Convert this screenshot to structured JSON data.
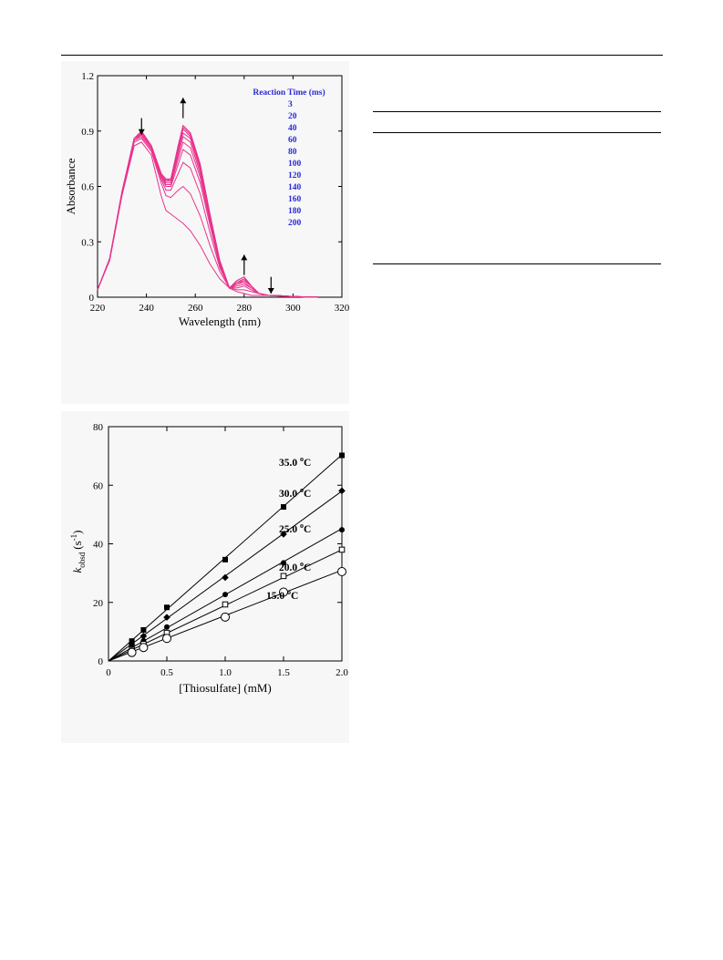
{
  "colors": {
    "spectra": "#e8338c",
    "legend_text": "#2a2ad8",
    "axis": "#000000",
    "panel_bg": "#f7f7f7"
  },
  "chart_data": [
    {
      "type": "line",
      "xlabel": "Wavelength (nm)",
      "ylabel": "Absorbance",
      "xlim": [
        220,
        320
      ],
      "ylim": [
        0,
        1.2
      ],
      "xticks": [
        "220",
        "240",
        "260",
        "280",
        "300",
        "320"
      ],
      "yticks": [
        "0",
        "0.3",
        "0.6",
        "0.9",
        "1.2"
      ],
      "legend_title": "Reaction Time (ms)",
      "legend_placement": "top-right",
      "legend_entries": [
        "3",
        "20",
        "40",
        "60",
        "80",
        "100",
        "120",
        "140",
        "160",
        "180",
        "200"
      ],
      "arrows": [
        {
          "x": 238,
          "direction": "down"
        },
        {
          "x": 255,
          "direction": "up"
        },
        {
          "x": 280,
          "direction": "up"
        },
        {
          "x": 291,
          "direction": "down"
        }
      ],
      "x": [
        220,
        225,
        230,
        235,
        238,
        242,
        246,
        248,
        250,
        253,
        255,
        258,
        262,
        266,
        270,
        274,
        277,
        280,
        283,
        286,
        290,
        295,
        300,
        305,
        310
      ],
      "series": [
        {
          "values": [
            0.04,
            0.2,
            0.55,
            0.82,
            0.84,
            0.77,
            0.55,
            0.47,
            0.45,
            0.42,
            0.4,
            0.36,
            0.28,
            0.18,
            0.1,
            0.05,
            0.03,
            0.02,
            0.01,
            0.01,
            0.01,
            0.005,
            0.003,
            0.002,
            0.001
          ]
        },
        {
          "values": [
            0.04,
            0.21,
            0.56,
            0.84,
            0.86,
            0.79,
            0.62,
            0.55,
            0.54,
            0.58,
            0.6,
            0.56,
            0.44,
            0.28,
            0.14,
            0.05,
            0.04,
            0.04,
            0.03,
            0.02,
            0.01,
            0.007,
            0.004,
            0.002,
            0.001
          ]
        },
        {
          "values": [
            0.04,
            0.21,
            0.57,
            0.85,
            0.87,
            0.8,
            0.64,
            0.58,
            0.58,
            0.67,
            0.73,
            0.7,
            0.56,
            0.35,
            0.16,
            0.05,
            0.05,
            0.06,
            0.04,
            0.02,
            0.01,
            0.008,
            0.004,
            0.002,
            0.001
          ]
        },
        {
          "values": [
            0.04,
            0.21,
            0.57,
            0.85,
            0.88,
            0.81,
            0.65,
            0.6,
            0.6,
            0.72,
            0.8,
            0.77,
            0.62,
            0.39,
            0.17,
            0.05,
            0.06,
            0.07,
            0.05,
            0.02,
            0.01,
            0.008,
            0.004,
            0.002,
            0.001
          ]
        },
        {
          "values": [
            0.04,
            0.21,
            0.57,
            0.86,
            0.88,
            0.81,
            0.66,
            0.61,
            0.61,
            0.75,
            0.84,
            0.81,
            0.65,
            0.41,
            0.18,
            0.05,
            0.07,
            0.08,
            0.05,
            0.02,
            0.01,
            0.008,
            0.004,
            0.002,
            0.001
          ]
        },
        {
          "values": [
            0.04,
            0.21,
            0.57,
            0.86,
            0.89,
            0.82,
            0.66,
            0.62,
            0.62,
            0.77,
            0.87,
            0.84,
            0.67,
            0.42,
            0.18,
            0.05,
            0.07,
            0.09,
            0.06,
            0.02,
            0.01,
            0.008,
            0.004,
            0.002,
            0.001
          ]
        },
        {
          "values": [
            0.04,
            0.21,
            0.57,
            0.86,
            0.89,
            0.82,
            0.67,
            0.63,
            0.63,
            0.79,
            0.89,
            0.86,
            0.69,
            0.43,
            0.19,
            0.05,
            0.08,
            0.09,
            0.06,
            0.02,
            0.01,
            0.008,
            0.004,
            0.002,
            0.001
          ]
        },
        {
          "values": [
            0.04,
            0.21,
            0.57,
            0.86,
            0.89,
            0.82,
            0.67,
            0.63,
            0.63,
            0.8,
            0.91,
            0.87,
            0.7,
            0.44,
            0.19,
            0.05,
            0.08,
            0.1,
            0.06,
            0.02,
            0.01,
            0.008,
            0.004,
            0.002,
            0.001
          ]
        },
        {
          "values": [
            0.04,
            0.21,
            0.57,
            0.86,
            0.89,
            0.82,
            0.67,
            0.63,
            0.64,
            0.81,
            0.92,
            0.88,
            0.71,
            0.44,
            0.19,
            0.05,
            0.08,
            0.1,
            0.06,
            0.02,
            0.01,
            0.008,
            0.004,
            0.002,
            0.001
          ]
        },
        {
          "values": [
            0.04,
            0.21,
            0.57,
            0.86,
            0.9,
            0.82,
            0.67,
            0.64,
            0.64,
            0.82,
            0.93,
            0.89,
            0.72,
            0.45,
            0.2,
            0.05,
            0.09,
            0.11,
            0.06,
            0.02,
            0.01,
            0.008,
            0.004,
            0.002,
            0.001
          ]
        },
        {
          "values": [
            0.04,
            0.21,
            0.57,
            0.86,
            0.9,
            0.82,
            0.67,
            0.64,
            0.64,
            0.82,
            0.93,
            0.89,
            0.72,
            0.45,
            0.2,
            0.05,
            0.09,
            0.11,
            0.06,
            0.02,
            0.01,
            0.008,
            0.004,
            0.002,
            0.001
          ]
        }
      ]
    },
    {
      "type": "scatter",
      "xlabel": "[Thiosulfate] (mM)",
      "ylabel_main": "k",
      "ylabel_sub": "obsd",
      "ylabel_unit_open": "(s",
      "ylabel_sup": "-1",
      "ylabel_unit_close": ")",
      "xlim": [
        0,
        2.0
      ],
      "ylim": [
        0,
        80
      ],
      "xticks": [
        "0",
        "0.5",
        "1.0",
        "1.5",
        "2.0"
      ],
      "yticks": [
        "0",
        "20",
        "40",
        "60",
        "80"
      ],
      "fit_lines": true,
      "series": [
        {
          "label_value": "35.0",
          "label_unit": "C",
          "marker": "filled-square",
          "slope": 35.2,
          "x": [
            0.2,
            0.3,
            0.5,
            1.0,
            1.5,
            2.0
          ],
          "values": [
            6.8,
            10.6,
            18.3,
            34.6,
            52.6,
            70.2
          ]
        },
        {
          "label_value": "30.0",
          "label_unit": "C",
          "marker": "filled-diamond",
          "slope": 29.0,
          "x": [
            0.2,
            0.3,
            0.5,
            1.0,
            1.5,
            2.0
          ],
          "values": [
            5.6,
            8.5,
            14.9,
            28.5,
            43.3,
            58.1
          ]
        },
        {
          "label_value": "25.0",
          "label_unit": "C",
          "marker": "filled-circle",
          "slope": 22.6,
          "x": [
            0.2,
            0.3,
            0.5,
            1.0,
            1.5,
            2.0
          ],
          "values": [
            4.6,
            6.9,
            11.6,
            22.7,
            33.5,
            44.8
          ]
        },
        {
          "label_value": "20.0",
          "label_unit": "C",
          "marker": "open-square",
          "slope": 19.0,
          "x": [
            0.2,
            0.3,
            0.5,
            1.0,
            1.5,
            2.0
          ],
          "values": [
            3.8,
            5.8,
            9.6,
            19.3,
            29.0,
            38.0
          ]
        },
        {
          "label_value": "15.0",
          "label_unit": "C",
          "marker": "open-circle",
          "slope": 15.5,
          "x": [
            0.2,
            0.3,
            0.5,
            1.0,
            1.5,
            2.0
          ],
          "values": [
            2.9,
            4.6,
            7.7,
            15.0,
            23.5,
            30.5
          ]
        }
      ]
    }
  ]
}
